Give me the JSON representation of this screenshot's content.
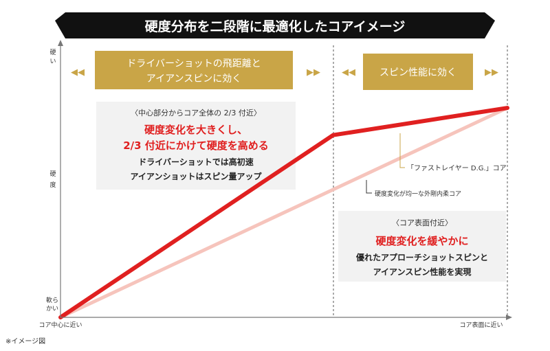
{
  "colors": {
    "banner_bg": "#111111",
    "banner_text": "#ffffff",
    "gold": "#C9A547",
    "red": "#E02020",
    "pink": "#F6C4BC",
    "axis": "#777777",
    "panel_bg": "#F2F2F2"
  },
  "banner": {
    "title": "硬度分布を二段階に最適化したコアイメージ"
  },
  "axis": {
    "y_label_top": "硬い",
    "y_label_mid_1": "硬",
    "y_label_mid_2": "度",
    "y_label_bottom_1": "軟ら",
    "y_label_bottom_2": "かい",
    "x_label_left": "コア中心に近い",
    "x_label_right": "コア表面に近い"
  },
  "zones": {
    "left_header_line1": "ドライバーショットの飛距離と",
    "left_header_line2": "アイアンスピンに効く",
    "right_header": "スピン性能に効く",
    "arrow_left": "◀◀",
    "arrow_right": "▶▶"
  },
  "panels": {
    "left": {
      "subtitle": "〈中心部分からコア全体の 2/3 付近〉",
      "heading_line1": "硬度変化を大きくし、",
      "heading_line2": "2/3 付近にかけて硬度を高める",
      "body_line1": "ドライバーショットでは高初速",
      "body_line2": "アイアンショットはスピン量アップ"
    },
    "right": {
      "subtitle": "〈コア表面付近〉",
      "heading": "硬度変化を緩やかに",
      "body_line1": "優れたアプローチショットスピンと",
      "body_line2": "アイアンスピン性能を実現"
    }
  },
  "callouts": {
    "fast_layer": "「ファストレイヤー D.G.」コア",
    "uniform": "硬度変化が均一な外剛内柔コア"
  },
  "footnote": "※イメージ図",
  "chart_data": {
    "type": "line",
    "title": "硬度分布を二段階に最適化したコアイメージ",
    "xlabel_left": "コア中心に近い",
    "xlabel_right": "コア表面に近い",
    "ylabel": "硬度",
    "x_unit": "core position (0 = center, 1 = surface)",
    "xlim": [
      0,
      1
    ],
    "ylim": [
      0,
      1
    ],
    "zone_divider_x": 0.61,
    "series": [
      {
        "name": "「ファストレイヤー D.G.」コア",
        "color": "#E02020",
        "x": [
          0,
          0.61,
          1.0
        ],
        "y": [
          0.0,
          0.67,
          0.77
        ]
      },
      {
        "name": "硬度変化が均一な外剛内柔コア",
        "color": "#F6C4BC",
        "x": [
          0,
          1.0
        ],
        "y": [
          0.0,
          0.77
        ]
      }
    ]
  }
}
